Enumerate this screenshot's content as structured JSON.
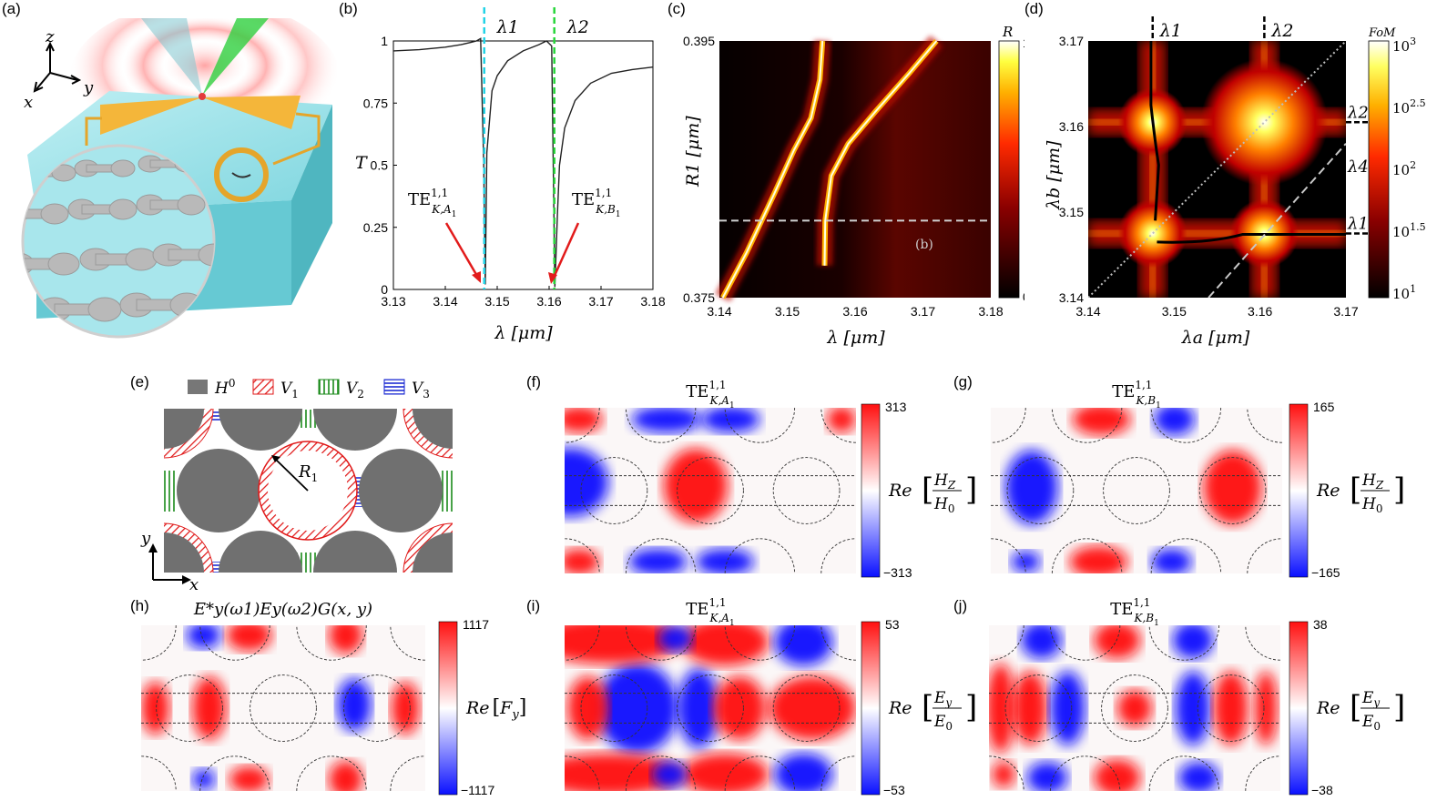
{
  "panels": {
    "a": {
      "label": "(a)",
      "axes": [
        "z",
        "y",
        "x"
      ]
    },
    "b": {
      "label": "(b)"
    },
    "c": {
      "label": "(c)"
    },
    "d": {
      "label": "(d)"
    },
    "e": {
      "label": "(e)"
    },
    "f": {
      "label": "(f)"
    },
    "g": {
      "label": "(g)"
    },
    "h": {
      "label": "(h)"
    },
    "i": {
      "label": "(i)"
    },
    "j": {
      "label": "(j)"
    }
  },
  "chart_data": [
    {
      "id": "b",
      "type": "line",
      "xlabel": "λ [μm]",
      "ylabel": "T",
      "xlim": [
        3.13,
        3.18
      ],
      "ylim": [
        0,
        1
      ],
      "xticks": [
        "3.13",
        "3.14",
        "3.15",
        "3.16",
        "3.17",
        "3.18"
      ],
      "yticks": [
        "0",
        "0.25",
        "0.5",
        "0.75",
        "1"
      ],
      "resonances": [
        {
          "name": "λ1",
          "x": 3.1475,
          "color": "#22d3e6",
          "mode": "TE",
          "mode_sup": "1,1",
          "mode_sub": "K,A",
          "mode_sub_idx": "1"
        },
        {
          "name": "λ2",
          "x": 3.161,
          "color": "#27d63a",
          "mode": "TE",
          "mode_sup": "1,1",
          "mode_sub": "K,B",
          "mode_sub_idx": "1"
        }
      ],
      "series": [
        {
          "name": "T",
          "x": [
            3.13,
            3.135,
            3.14,
            3.143,
            3.145,
            3.146,
            3.1468,
            3.1474,
            3.1477,
            3.148,
            3.149,
            3.15,
            3.152,
            3.155,
            3.158,
            3.1595,
            3.1605,
            3.1611,
            3.1616,
            3.162,
            3.163,
            3.165,
            3.168,
            3.172,
            3.176,
            3.18
          ],
          "y": [
            0.96,
            0.965,
            0.975,
            0.985,
            0.995,
            1.0,
            1.01,
            0.5,
            0.02,
            0.55,
            0.8,
            0.86,
            0.92,
            0.96,
            0.985,
            1.0,
            0.98,
            0.01,
            0.3,
            0.5,
            0.65,
            0.76,
            0.83,
            0.87,
            0.885,
            0.895
          ]
        }
      ]
    },
    {
      "id": "c",
      "type": "heatmap",
      "xlabel": "λ [μm]",
      "ylabel": "R1 [μm]",
      "xlim": [
        3.14,
        3.18
      ],
      "ylim": [
        0.375,
        0.395
      ],
      "xticks": [
        "3.14",
        "3.15",
        "3.16",
        "3.17",
        "3.18"
      ],
      "yticks": [
        "0.375",
        "0.395"
      ],
      "colorbar": {
        "title": "R",
        "min": "0",
        "max": "1"
      },
      "cut_label": "(b)",
      "cut_y": 0.381
    },
    {
      "id": "d",
      "type": "heatmap",
      "xlabel": "λa [μm]",
      "ylabel": "λb [μm]",
      "xlim": [
        3.14,
        3.17
      ],
      "ylim": [
        3.14,
        3.17
      ],
      "xticks": [
        "3.14",
        "3.15",
        "3.16",
        "3.17"
      ],
      "yticks": [
        "3.14",
        "3.15",
        "3.16",
        "3.17"
      ],
      "top_markers": [
        "λ1",
        "λ2"
      ],
      "right_markers": [
        "λ2",
        "λ4",
        "λ1"
      ],
      "colorbar": {
        "title": "FoM",
        "ticks": [
          "10",
          "10",
          "10",
          "10",
          "10"
        ],
        "exps": [
          "3",
          "2.5",
          "2",
          "1.5",
          "1"
        ]
      }
    }
  ],
  "legend_e": {
    "items": [
      {
        "name": "H",
        "sup": "0"
      },
      {
        "name": "V",
        "sub": "1"
      },
      {
        "name": "V",
        "sub": "2"
      },
      {
        "name": "V",
        "sub": "3"
      }
    ],
    "radius_label": "R",
    "radius_sub": "1",
    "axis_x": "x",
    "axis_y": "y"
  },
  "field_maps": [
    {
      "id": "f",
      "title_main": "TE",
      "title_sup": "1,1",
      "title_sub": "K,A",
      "title_sub_idx": "1",
      "cmax": "313",
      "cmin": "−313",
      "cb_quantity": "H",
      "cb_q_sub": "Z",
      "cb_ref": "H",
      "cb_ref_sub": "0",
      "prefix": "Re"
    },
    {
      "id": "g",
      "title_main": "TE",
      "title_sup": "1,1",
      "title_sub": "K,B",
      "title_sub_idx": "1",
      "cmax": "165",
      "cmin": "−165",
      "cb_quantity": "H",
      "cb_q_sub": "Z",
      "cb_ref": "H",
      "cb_ref_sub": "0",
      "prefix": "Re"
    },
    {
      "id": "h",
      "title_text": "E*y(ω1)Ey(ω2)G(x, y)",
      "cmax": "1117",
      "cmin": "−1117",
      "cb_text": "F",
      "cb_text_sub": "y",
      "prefix": "Re"
    },
    {
      "id": "i",
      "title_main": "TE",
      "title_sup": "1,1",
      "title_sub": "K,A",
      "title_sub_idx": "1",
      "cmax": "53",
      "cmin": "−53",
      "cb_quantity": "E",
      "cb_q_sub": "y",
      "cb_ref": "E",
      "cb_ref_sub": "0",
      "prefix": "Re"
    },
    {
      "id": "j",
      "title_main": "TE",
      "title_sup": "1,1",
      "title_sub": "K,B",
      "title_sub_idx": "1",
      "cmax": "38",
      "cmin": "−38",
      "cb_quantity": "E",
      "cb_q_sub": "y",
      "cb_ref": "E",
      "cb_ref_sub": "0",
      "prefix": "Re"
    }
  ]
}
